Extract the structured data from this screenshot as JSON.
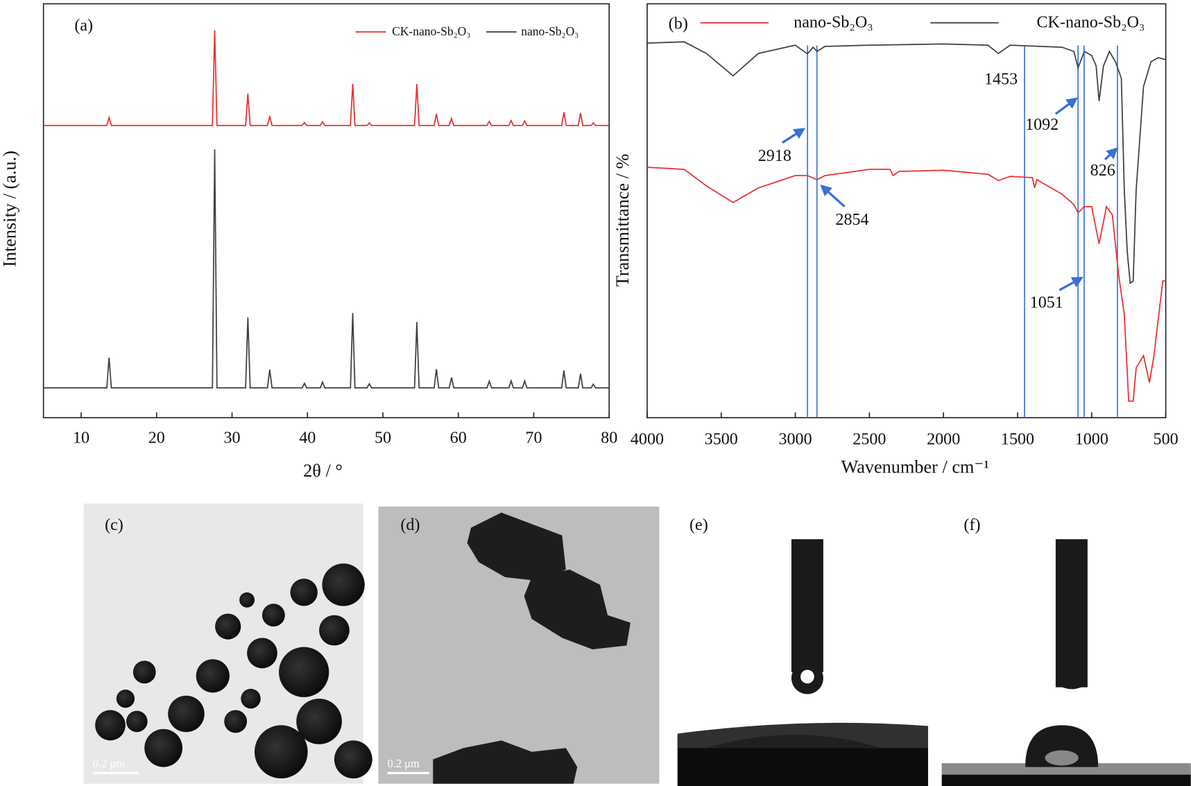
{
  "chart_data": [
    {
      "type": "line",
      "panel": "(a)",
      "xlabel": "2θ / °",
      "ylabel": "Intensity / (a.u.)",
      "xlim": [
        5,
        80
      ],
      "xticks": [
        10,
        20,
        30,
        40,
        50,
        60,
        70,
        80
      ],
      "ylim": [
        0,
        100
      ],
      "legend": "upper right",
      "x": [
        5,
        13.4,
        13.7,
        14.0,
        27.4,
        27.7,
        28.0,
        31.8,
        32.1,
        32.4,
        34.7,
        35.0,
        35.3,
        39.3,
        39.6,
        39.9,
        41.7,
        42.0,
        42.3,
        45.7,
        46.0,
        46.3,
        47.9,
        48.2,
        48.5,
        54.2,
        54.5,
        54.8,
        56.8,
        57.1,
        57.4,
        58.8,
        59.1,
        59.4,
        63.8,
        64.1,
        64.4,
        66.7,
        67.0,
        67.3,
        68.5,
        68.8,
        69.1,
        73.7,
        74.0,
        74.3,
        75.9,
        76.2,
        76.5,
        77.6,
        77.9,
        78.2,
        80
      ],
      "series": [
        {
          "name": "CK-nano-Sb₂O₃",
          "color": "#e8302f",
          "values": [
            70.6,
            70.6,
            72.5,
            70.6,
            70.6,
            93.6,
            70.6,
            70.6,
            78.3,
            70.6,
            70.6,
            72.7,
            70.6,
            70.6,
            71.3,
            70.6,
            70.6,
            71.5,
            70.6,
            70.6,
            80.7,
            70.6,
            70.6,
            71.2,
            70.6,
            70.6,
            80.6,
            70.6,
            70.6,
            73.4,
            70.6,
            70.6,
            72.3,
            70.6,
            70.6,
            71.6,
            70.6,
            70.6,
            71.8,
            70.6,
            70.6,
            71.7,
            70.6,
            70.6,
            73.8,
            70.6,
            70.6,
            73.6,
            70.6,
            70.6,
            71.2,
            70.6,
            70.6
          ]
        },
        {
          "name": "nano-Sb₂O₃",
          "color": "#404040",
          "values": [
            7.2,
            7.2,
            14.5,
            7.2,
            7.2,
            64.8,
            7.2,
            7.2,
            24.2,
            7.2,
            7.2,
            11.6,
            7.2,
            7.2,
            8.3,
            7.2,
            7.2,
            8.6,
            7.2,
            7.2,
            25.3,
            7.2,
            7.2,
            8.2,
            7.2,
            7.2,
            23.1,
            7.2,
            7.2,
            11.7,
            7.2,
            7.2,
            9.7,
            7.2,
            7.2,
            8.8,
            7.2,
            7.2,
            8.9,
            7.2,
            7.2,
            8.9,
            7.2,
            7.2,
            11.4,
            7.2,
            7.2,
            10.6,
            7.2,
            7.2,
            8.1,
            7.2,
            7.2
          ]
        }
      ]
    },
    {
      "type": "line",
      "panel": "(b)",
      "xlabel": "Wavenumber / cm⁻¹",
      "ylabel": "Transmittance / %",
      "xlim": [
        4000,
        500
      ],
      "xticks": [
        4000,
        3500,
        3000,
        2500,
        2000,
        1500,
        1000,
        500
      ],
      "ylim": [
        0,
        100
      ],
      "legend": "top",
      "vlines": [
        2918,
        2854,
        1453,
        1092,
        1051,
        826
      ],
      "series": [
        {
          "name": "nano-Sb₂O₃",
          "color": "#e8302f",
          "x": [
            4000,
            3750,
            3600,
            3420,
            3250,
            3000,
            2918,
            2854,
            2800,
            2500,
            2360,
            2340,
            2300,
            2000,
            1700,
            1630,
            1550,
            1400,
            1385,
            1370,
            1200,
            1120,
            1092,
            1051,
            1000,
            950,
            900,
            860,
            820,
            780,
            750,
            720,
            700,
            650,
            610,
            580,
            520,
            500
          ],
          "values": [
            60.5,
            60,
            56,
            52,
            55.5,
            58.5,
            58.5,
            57.5,
            58.5,
            60,
            60,
            58.5,
            59.5,
            59.8,
            58.8,
            57.3,
            58.3,
            58,
            55.5,
            57.5,
            54,
            51.5,
            49.5,
            51,
            51,
            42,
            51,
            49,
            35,
            25,
            4,
            4,
            12,
            15,
            8.5,
            15,
            33,
            33
          ]
        },
        {
          "name": "CK-nano-Sb₂O₃",
          "color": "#404040",
          "x": [
            4000,
            3750,
            3600,
            3420,
            3250,
            3000,
            2918,
            2880,
            2854,
            2800,
            2500,
            2000,
            1700,
            1630,
            1550,
            1200,
            1120,
            1092,
            1050,
            1000,
            970,
            950,
            920,
            880,
            840,
            800,
            780,
            760,
            740,
            720,
            700,
            650,
            600,
            550,
            500
          ],
          "values": [
            90.5,
            90.8,
            88,
            82.6,
            88,
            90,
            87.9,
            89.5,
            88.5,
            89.7,
            90,
            90.3,
            90,
            88,
            90,
            89.5,
            88.5,
            84.5,
            88.5,
            87.5,
            85,
            76.5,
            85,
            88.5,
            86,
            82,
            55,
            40,
            32.5,
            33,
            55,
            80,
            86,
            87,
            86.5
          ]
        }
      ]
    }
  ],
  "panels": [
    {
      "label": "(c)",
      "scale_bar": "0.2 μm"
    },
    {
      "label": "(d)",
      "scale_bar": "0.2 μm"
    },
    {
      "label": "(e)"
    },
    {
      "label": "(f)"
    }
  ]
}
